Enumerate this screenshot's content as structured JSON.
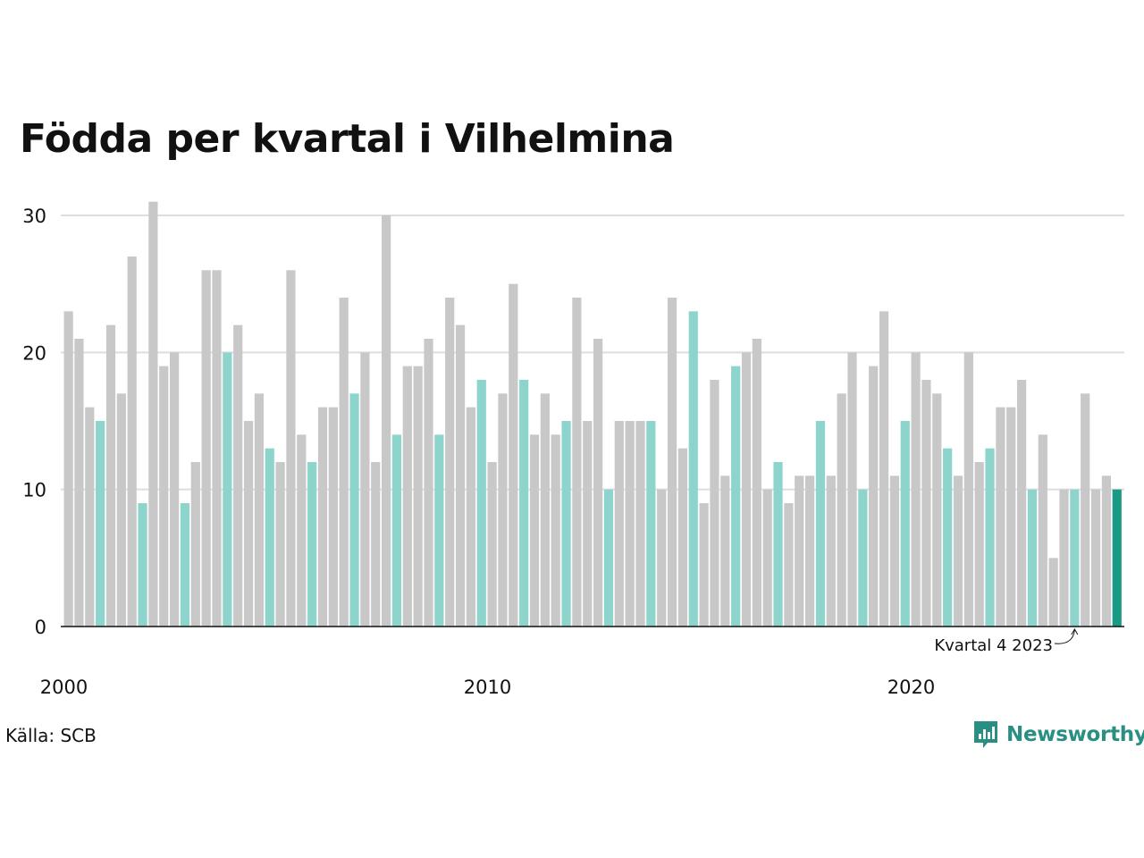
{
  "title": "Födda per kvartal i Vilhelmina",
  "source": "Källa: SCB",
  "brand": "Newsworthy",
  "colors": {
    "bar_default": "#c8c8c8",
    "bar_q4": "#8dd5cc",
    "bar_latest": "#1a9985",
    "grid": "#dddddd",
    "axis": "#111111",
    "brand": "#2a8f83"
  },
  "chart_data": {
    "type": "bar",
    "title": "Födda per kvartal i Vilhelmina",
    "xlabel": "",
    "ylabel": "",
    "ylim": [
      0,
      30
    ],
    "yticks": [
      0,
      10,
      20,
      30
    ],
    "grid": true,
    "start_year": 2000,
    "xtick_labels": [
      {
        "label": "2000",
        "index": 0
      },
      {
        "label": "2010",
        "index": 40
      },
      {
        "label": "2020",
        "index": 80
      }
    ],
    "annotation": {
      "label": "Kvartal 4 2023",
      "index": 95
    },
    "values": [
      23,
      21,
      16,
      15,
      22,
      17,
      27,
      9,
      31,
      19,
      20,
      9,
      12,
      26,
      26,
      20,
      22,
      15,
      17,
      13,
      12,
      26,
      14,
      12,
      16,
      16,
      24,
      17,
      20,
      12,
      30,
      14,
      19,
      19,
      21,
      14,
      24,
      22,
      16,
      18,
      12,
      17,
      25,
      18,
      14,
      17,
      14,
      15,
      24,
      15,
      21,
      10,
      15,
      15,
      15,
      15,
      10,
      24,
      13,
      23,
      9,
      18,
      11,
      19,
      20,
      21,
      10,
      12,
      9,
      11,
      11,
      15,
      11,
      17,
      20,
      10,
      19,
      23,
      11,
      15,
      20,
      18,
      17,
      13,
      11,
      20,
      12,
      13,
      16,
      16,
      18,
      10,
      14,
      5,
      10,
      10,
      17,
      10,
      11,
      10
    ]
  }
}
